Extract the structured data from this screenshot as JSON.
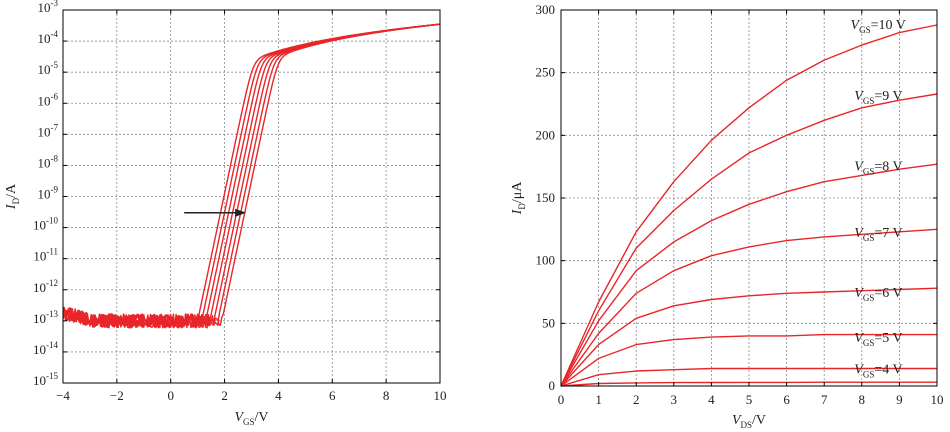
{
  "colors": {
    "curve": "#e8262a",
    "arrow": "#222222",
    "grid": "#8a8a8a"
  },
  "chart_data": [
    {
      "type": "line",
      "yscale": "log",
      "xlabel": {
        "main": "V",
        "sub": "GS",
        "unit": "/V"
      },
      "ylabel": {
        "main": "I",
        "sub": "D",
        "unit": "/A"
      },
      "xlim": [
        -4,
        10
      ],
      "ylim": [
        1e-15,
        0.001
      ],
      "grid": true,
      "x_ticks": [
        "−4",
        "−2",
        "0",
        "2",
        "4",
        "6",
        "8",
        "10"
      ],
      "y_ticks": [
        {
          "base": "10",
          "exp": "-3"
        },
        {
          "base": "10",
          "exp": "-4"
        },
        {
          "base": "10",
          "exp": "-5"
        },
        {
          "base": "10",
          "exp": "-6"
        },
        {
          "base": "10",
          "exp": "-7"
        },
        {
          "base": "10",
          "exp": "-8"
        },
        {
          "base": "10",
          "exp": "-9"
        },
        {
          "base": "10",
          "exp": "-10"
        },
        {
          "base": "10",
          "exp": "-11"
        },
        {
          "base": "10",
          "exp": "-12"
        },
        {
          "base": "10",
          "exp": "-13"
        },
        {
          "base": "10",
          "exp": "-14"
        },
        {
          "base": "10",
          "exp": "-15"
        }
      ],
      "threshold_voltages": [
        1.0,
        1.15,
        1.3,
        1.45,
        1.6,
        1.75,
        1.9
      ],
      "off_current_a": 1e-13,
      "on_current_at_10v_a": 0.00035,
      "annotation": {
        "type": "arrow",
        "direction": "right",
        "x_from": 0.5,
        "x_to": 2.8,
        "y": 3e-10
      }
    },
    {
      "type": "line",
      "xlabel": {
        "main": "V",
        "sub": "DS",
        "unit": "/V"
      },
      "ylabel": {
        "main": "I",
        "sub": "D",
        "unit": "/μA"
      },
      "xlim": [
        0,
        10
      ],
      "ylim": [
        0,
        300
      ],
      "grid": true,
      "x_ticks": [
        "0",
        "1",
        "2",
        "3",
        "4",
        "5",
        "6",
        "7",
        "8",
        "9",
        "10"
      ],
      "y_ticks": [
        "0",
        "50",
        "100",
        "150",
        "200",
        "250",
        "300"
      ],
      "series": [
        {
          "label": {
            "main": "V",
            "sub": "GS",
            "value": "=10 V"
          },
          "label_at": [
            7.7,
            285
          ],
          "x": [
            0,
            1,
            2,
            3,
            4,
            5,
            6,
            7,
            8,
            9,
            10
          ],
          "y": [
            0,
            67,
            123,
            163,
            196,
            222,
            244,
            260,
            272,
            282,
            288
          ]
        },
        {
          "label": {
            "main": "V",
            "sub": "GS",
            "value": "=9 V"
          },
          "label_at": [
            7.8,
            228
          ],
          "x": [
            0,
            1,
            2,
            3,
            4,
            5,
            6,
            7,
            8,
            9,
            10
          ],
          "y": [
            0,
            60,
            110,
            140,
            165,
            186,
            200,
            212,
            222,
            228,
            233
          ]
        },
        {
          "label": {
            "main": "V",
            "sub": "GS",
            "value": "=8 V"
          },
          "label_at": [
            7.8,
            172
          ],
          "x": [
            0,
            1,
            2,
            3,
            4,
            5,
            6,
            7,
            8,
            9,
            10
          ],
          "y": [
            0,
            52,
            92,
            115,
            132,
            145,
            155,
            163,
            168,
            173,
            177
          ]
        },
        {
          "label": {
            "main": "V",
            "sub": "GS",
            "value": "=7 V"
          },
          "label_at": [
            7.8,
            119
          ],
          "x": [
            0,
            1,
            2,
            3,
            4,
            5,
            6,
            7,
            8,
            9,
            10
          ],
          "y": [
            0,
            42,
            74,
            92,
            104,
            111,
            116,
            119,
            121,
            123,
            125
          ]
        },
        {
          "label": {
            "main": "V",
            "sub": "GS",
            "value": "=6 V"
          },
          "label_at": [
            7.8,
            71
          ],
          "x": [
            0,
            1,
            2,
            3,
            4,
            5,
            6,
            7,
            8,
            9,
            10
          ],
          "y": [
            0,
            33,
            54,
            64,
            69,
            72,
            74,
            75,
            76,
            77,
            78
          ]
        },
        {
          "label": {
            "main": "V",
            "sub": "GS",
            "value": "=5 V"
          },
          "label_at": [
            7.8,
            35
          ],
          "x": [
            0,
            1,
            2,
            3,
            4,
            5,
            6,
            7,
            8,
            9,
            10
          ],
          "y": [
            0,
            22,
            33,
            37,
            39,
            40,
            40,
            41,
            41,
            41,
            41
          ]
        },
        {
          "label": {
            "main": "V",
            "sub": "GS",
            "value": "=4 V"
          },
          "label_at": [
            7.8,
            10
          ],
          "x": [
            0,
            1,
            2,
            3,
            4,
            5,
            6,
            7,
            8,
            9,
            10
          ],
          "y": [
            0,
            9,
            12,
            13,
            14,
            14,
            14,
            14,
            14,
            14,
            14
          ]
        },
        {
          "label": null,
          "x": [
            0,
            1,
            2,
            3,
            4,
            5,
            6,
            7,
            8,
            9,
            10
          ],
          "y": [
            0,
            2,
            2.5,
            2.7,
            2.8,
            2.9,
            2.9,
            3,
            3,
            3,
            3
          ]
        }
      ]
    }
  ]
}
